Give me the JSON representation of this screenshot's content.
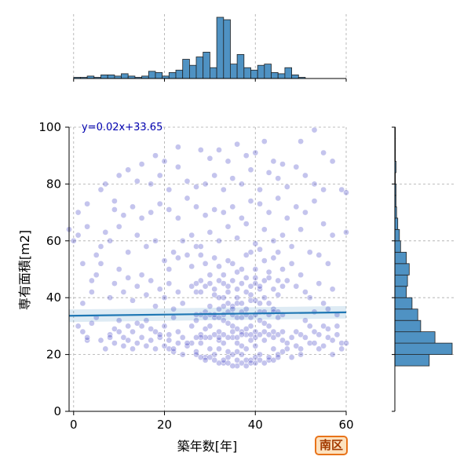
{
  "badge": {
    "label": "南区"
  },
  "chart_data": {
    "type": "scatter",
    "xlabel": "築年数[年]",
    "ylabel": "専有面積[m2]",
    "xlim": [
      -1,
      60
    ],
    "ylim": [
      0,
      100
    ],
    "xticks": [
      0,
      20,
      40,
      60
    ],
    "yticks": [
      0,
      20,
      40,
      60,
      80,
      100
    ],
    "grid": true,
    "regression": {
      "label": "y=0.02x+33.65",
      "slope": 0.02,
      "intercept": 33.65
    },
    "colors": {
      "points": "#2b2bbf",
      "hist": "#4f92c3",
      "line": "#1f77b4",
      "annotation": "#0000b0"
    },
    "marginal_x_hist": {
      "bin_width": 1.5,
      "bin_start": 0,
      "counts": [
        1,
        1,
        2,
        1,
        3,
        3,
        2,
        4,
        2,
        1,
        2,
        6,
        5,
        2,
        5,
        7,
        16,
        11,
        18,
        22,
        9,
        51,
        49,
        12,
        20,
        9,
        7,
        11,
        12,
        5,
        4,
        9,
        3,
        1,
        0
      ]
    },
    "marginal_y_hist": {
      "bin_width": 4,
      "bin_start": 16,
      "counts": [
        60,
        100,
        70,
        45,
        40,
        30,
        20,
        22,
        25,
        20,
        10,
        8,
        5,
        3,
        2,
        2,
        1,
        2,
        1,
        1,
        1
      ]
    },
    "points": [
      [
        38,
        18
      ],
      [
        35,
        20
      ],
      [
        32,
        22
      ],
      [
        36,
        24
      ],
      [
        40,
        19
      ],
      [
        34,
        21
      ],
      [
        37,
        23
      ],
      [
        33,
        17
      ],
      [
        39,
        25
      ],
      [
        31,
        20
      ],
      [
        36,
        18
      ],
      [
        38,
        22
      ],
      [
        35,
        26
      ],
      [
        33,
        24
      ],
      [
        37,
        20
      ],
      [
        40,
        23
      ],
      [
        34,
        19
      ],
      [
        32,
        25
      ],
      [
        36,
        21
      ],
      [
        39,
        18
      ],
      [
        30,
        22
      ],
      [
        28,
        24
      ],
      [
        41,
        20
      ],
      [
        42,
        25
      ],
      [
        29,
        19
      ],
      [
        44,
        22
      ],
      [
        27,
        21
      ],
      [
        43,
        18
      ],
      [
        26,
        24
      ],
      [
        45,
        20
      ],
      [
        25,
        23
      ],
      [
        46,
        25
      ],
      [
        24,
        20
      ],
      [
        47,
        22
      ],
      [
        23,
        24
      ],
      [
        48,
        19
      ],
      [
        22,
        21
      ],
      [
        49,
        23
      ],
      [
        21,
        22
      ],
      [
        50,
        20
      ],
      [
        37,
        28
      ],
      [
        35,
        30
      ],
      [
        33,
        32
      ],
      [
        38,
        27
      ],
      [
        36,
        29
      ],
      [
        34,
        31
      ],
      [
        32,
        28
      ],
      [
        39,
        30
      ],
      [
        31,
        33
      ],
      [
        40,
        28
      ],
      [
        30,
        30
      ],
      [
        41,
        32
      ],
      [
        29,
        29
      ],
      [
        42,
        31
      ],
      [
        28,
        27
      ],
      [
        43,
        30
      ],
      [
        27,
        32
      ],
      [
        44,
        28
      ],
      [
        26,
        30
      ],
      [
        45,
        33
      ],
      [
        20,
        30
      ],
      [
        18,
        28
      ],
      [
        16,
        32
      ],
      [
        15,
        30
      ],
      [
        22,
        33
      ],
      [
        19,
        26
      ],
      [
        17,
        29
      ],
      [
        14,
        31
      ],
      [
        21,
        27
      ],
      [
        13,
        28
      ],
      [
        12,
        30
      ],
      [
        11,
        26
      ],
      [
        10,
        32
      ],
      [
        9,
        29
      ],
      [
        8,
        27
      ],
      [
        6,
        25
      ],
      [
        4,
        31
      ],
      [
        3,
        25
      ],
      [
        2,
        28
      ],
      [
        7,
        22
      ],
      [
        52,
        24
      ],
      [
        53,
        28
      ],
      [
        54,
        22
      ],
      [
        55,
        30
      ],
      [
        56,
        26
      ],
      [
        57,
        20
      ],
      [
        58,
        34
      ],
      [
        59,
        24
      ],
      [
        51,
        32
      ],
      [
        50,
        27
      ],
      [
        53,
        35
      ],
      [
        55,
        38
      ],
      [
        52,
        40
      ],
      [
        57,
        43
      ],
      [
        54,
        45
      ],
      [
        56,
        36
      ],
      [
        51,
        42
      ],
      [
        58,
        30
      ],
      [
        59,
        22
      ],
      [
        60,
        24
      ],
      [
        37,
        35
      ],
      [
        35,
        37
      ],
      [
        33,
        40
      ],
      [
        38,
        42
      ],
      [
        36,
        38
      ],
      [
        34,
        44
      ],
      [
        32,
        36
      ],
      [
        39,
        39
      ],
      [
        31,
        41
      ],
      [
        40,
        45
      ],
      [
        30,
        37
      ],
      [
        41,
        43
      ],
      [
        29,
        35
      ],
      [
        42,
        40
      ],
      [
        28,
        46
      ],
      [
        43,
        38
      ],
      [
        27,
        42
      ],
      [
        44,
        36
      ],
      [
        26,
        44
      ],
      [
        45,
        41
      ],
      [
        24,
        38
      ],
      [
        23,
        42
      ],
      [
        22,
        36
      ],
      [
        21,
        45
      ],
      [
        20,
        40
      ],
      [
        19,
        43
      ],
      [
        18,
        37
      ],
      [
        17,
        46
      ],
      [
        16,
        41
      ],
      [
        15,
        48
      ],
      [
        14,
        44
      ],
      [
        13,
        39
      ],
      [
        12,
        47
      ],
      [
        11,
        42
      ],
      [
        10,
        50
      ],
      [
        9,
        45
      ],
      [
        8,
        40
      ],
      [
        6,
        52
      ],
      [
        5,
        48
      ],
      [
        4,
        46
      ],
      [
        37,
        50
      ],
      [
        35,
        52
      ],
      [
        33,
        48
      ],
      [
        38,
        55
      ],
      [
        36,
        49
      ],
      [
        34,
        53
      ],
      [
        32,
        51
      ],
      [
        39,
        56
      ],
      [
        31,
        54
      ],
      [
        40,
        50
      ],
      [
        30,
        48
      ],
      [
        41,
        57
      ],
      [
        29,
        52
      ],
      [
        42,
        53
      ],
      [
        28,
        55
      ],
      [
        43,
        49
      ],
      [
        27,
        58
      ],
      [
        44,
        54
      ],
      [
        26,
        51
      ],
      [
        45,
        56
      ],
      [
        46,
        50
      ],
      [
        47,
        46
      ],
      [
        48,
        52
      ],
      [
        49,
        44
      ],
      [
        50,
        48
      ],
      [
        25,
        55
      ],
      [
        23,
        54
      ],
      [
        22,
        56
      ],
      [
        21,
        50
      ],
      [
        20,
        53
      ],
      [
        24,
        60
      ],
      [
        26,
        62
      ],
      [
        28,
        58
      ],
      [
        30,
        63
      ],
      [
        32,
        60
      ],
      [
        34,
        65
      ],
      [
        36,
        61
      ],
      [
        38,
        66
      ],
      [
        40,
        59
      ],
      [
        42,
        64
      ],
      [
        44,
        60
      ],
      [
        46,
        62
      ],
      [
        48,
        58
      ],
      [
        50,
        64
      ],
      [
        52,
        56
      ],
      [
        54,
        55
      ],
      [
        56,
        52
      ],
      [
        18,
        60
      ],
      [
        16,
        58
      ],
      [
        14,
        62
      ],
      [
        12,
        56
      ],
      [
        10,
        65
      ],
      [
        8,
        60
      ],
      [
        6,
        58
      ],
      [
        3,
        65
      ],
      [
        0,
        60
      ],
      [
        -1,
        64
      ],
      [
        1,
        62
      ],
      [
        5,
        55
      ],
      [
        7,
        63
      ],
      [
        33,
        70
      ],
      [
        35,
        72
      ],
      [
        37,
        68
      ],
      [
        39,
        74
      ],
      [
        31,
        71
      ],
      [
        29,
        69
      ],
      [
        41,
        73
      ],
      [
        43,
        70
      ],
      [
        27,
        72
      ],
      [
        25,
        75
      ],
      [
        23,
        68
      ],
      [
        21,
        71
      ],
      [
        19,
        73
      ],
      [
        17,
        70
      ],
      [
        15,
        68
      ],
      [
        13,
        72
      ],
      [
        11,
        69
      ],
      [
        9,
        71
      ],
      [
        45,
        75
      ],
      [
        47,
        68
      ],
      [
        49,
        72
      ],
      [
        51,
        70
      ],
      [
        53,
        74
      ],
      [
        55,
        66
      ],
      [
        57,
        62
      ],
      [
        60,
        63
      ],
      [
        37,
        80
      ],
      [
        35,
        82
      ],
      [
        33,
        78
      ],
      [
        39,
        85
      ],
      [
        31,
        83
      ],
      [
        29,
        80
      ],
      [
        41,
        78
      ],
      [
        43,
        84
      ],
      [
        27,
        79
      ],
      [
        25,
        81
      ],
      [
        23,
        86
      ],
      [
        21,
        78
      ],
      [
        19,
        83
      ],
      [
        17,
        80
      ],
      [
        14,
        81
      ],
      [
        12,
        85
      ],
      [
        45,
        82
      ],
      [
        47,
        79
      ],
      [
        49,
        86
      ],
      [
        51,
        83
      ],
      [
        53,
        80
      ],
      [
        55,
        78
      ],
      [
        57,
        88
      ],
      [
        59,
        78
      ],
      [
        60,
        77
      ],
      [
        34,
        88
      ],
      [
        38,
        90
      ],
      [
        32,
        92
      ],
      [
        36,
        94
      ],
      [
        30,
        89
      ],
      [
        23,
        93
      ],
      [
        20,
        88
      ],
      [
        40,
        91
      ],
      [
        44,
        88
      ],
      [
        50,
        95
      ],
      [
        53,
        99
      ],
      [
        28,
        92
      ],
      [
        18,
        90
      ],
      [
        42,
        95
      ],
      [
        46,
        87
      ],
      [
        55,
        91
      ],
      [
        15,
        87
      ],
      [
        10,
        83
      ],
      [
        6,
        78
      ],
      [
        3,
        73
      ],
      [
        1,
        70
      ],
      [
        7,
        80
      ],
      [
        9,
        74
      ],
      [
        2,
        52
      ],
      [
        4,
        42
      ],
      [
        2,
        38
      ],
      [
        5,
        33
      ],
      [
        1,
        30
      ],
      [
        3,
        26
      ],
      [
        36,
        16
      ],
      [
        37,
        17
      ],
      [
        38,
        16
      ],
      [
        39,
        17
      ],
      [
        35,
        16
      ],
      [
        34,
        17
      ],
      [
        33,
        18
      ],
      [
        40,
        17
      ],
      [
        41,
        18
      ],
      [
        32,
        17
      ],
      [
        31,
        18
      ],
      [
        42,
        17
      ],
      [
        30,
        19
      ],
      [
        43,
        19
      ],
      [
        29,
        18
      ],
      [
        44,
        18
      ],
      [
        28,
        19
      ],
      [
        45,
        19
      ],
      [
        27,
        20
      ],
      [
        46,
        21
      ],
      [
        36,
        26
      ],
      [
        37,
        27
      ],
      [
        38,
        29
      ],
      [
        39,
        27
      ],
      [
        35,
        28
      ],
      [
        34,
        26
      ],
      [
        33,
        27
      ],
      [
        40,
        26
      ],
      [
        41,
        27
      ],
      [
        32,
        26
      ],
      [
        31,
        27
      ],
      [
        42,
        28
      ],
      [
        30,
        26
      ],
      [
        43,
        27
      ],
      [
        29,
        26
      ],
      [
        44,
        26
      ],
      [
        28,
        26
      ],
      [
        45,
        27
      ],
      [
        27,
        26
      ],
      [
        46,
        28
      ],
      [
        36,
        33
      ],
      [
        37,
        33
      ],
      [
        38,
        34
      ],
      [
        39,
        33
      ],
      [
        35,
        34
      ],
      [
        34,
        35
      ],
      [
        33,
        34
      ],
      [
        40,
        34
      ],
      [
        41,
        35
      ],
      [
        32,
        33
      ],
      [
        31,
        34
      ],
      [
        42,
        35
      ],
      [
        30,
        34
      ],
      [
        43,
        34
      ],
      [
        29,
        33
      ],
      [
        44,
        35
      ],
      [
        28,
        34
      ],
      [
        45,
        35
      ],
      [
        27,
        34
      ],
      [
        46,
        34
      ],
      [
        36,
        43
      ],
      [
        37,
        45
      ],
      [
        38,
        47
      ],
      [
        39,
        44
      ],
      [
        35,
        46
      ],
      [
        34,
        42
      ],
      [
        33,
        45
      ],
      [
        40,
        47
      ],
      [
        41,
        44
      ],
      [
        32,
        46
      ],
      [
        31,
        43
      ],
      [
        42,
        46
      ],
      [
        30,
        45
      ],
      [
        43,
        47
      ],
      [
        29,
        44
      ],
      [
        44,
        43
      ],
      [
        28,
        42
      ],
      [
        45,
        46
      ],
      [
        27,
        45
      ],
      [
        46,
        44
      ],
      [
        25,
        24
      ],
      [
        24,
        26
      ],
      [
        23,
        28
      ],
      [
        22,
        22
      ],
      [
        21,
        25
      ],
      [
        20,
        23
      ],
      [
        19,
        27
      ],
      [
        18,
        22
      ],
      [
        17,
        25
      ],
      [
        16,
        23
      ],
      [
        15,
        26
      ],
      [
        14,
        24
      ],
      [
        13,
        22
      ],
      [
        12,
        25
      ],
      [
        11,
        23
      ],
      [
        10,
        28
      ],
      [
        9,
        24
      ],
      [
        8,
        26
      ],
      [
        47,
        24
      ],
      [
        48,
        26
      ],
      [
        49,
        28
      ],
      [
        50,
        22
      ],
      [
        51,
        26
      ],
      [
        52,
        30
      ],
      [
        53,
        24
      ],
      [
        54,
        27
      ],
      [
        55,
        23
      ],
      [
        56,
        29
      ],
      [
        57,
        25
      ],
      [
        58,
        27
      ],
      [
        37,
        38
      ],
      [
        35,
        36
      ],
      [
        36,
        40
      ],
      [
        38,
        36
      ],
      [
        34,
        38
      ],
      [
        39,
        41
      ],
      [
        33,
        37
      ],
      [
        40,
        39
      ],
      [
        32,
        40
      ],
      [
        41,
        38
      ]
    ]
  }
}
